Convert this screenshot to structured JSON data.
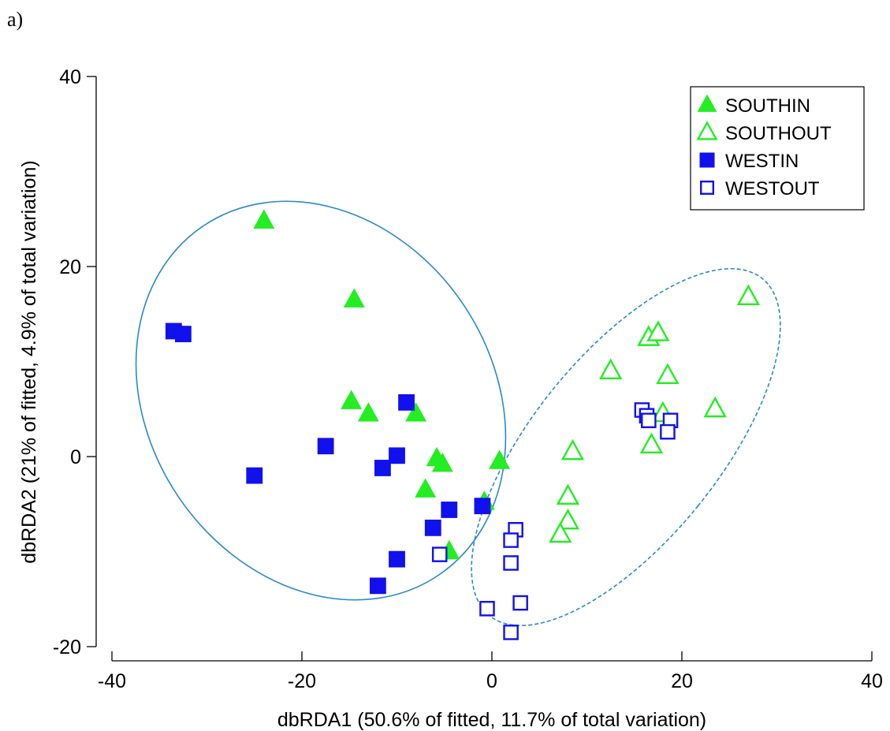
{
  "panel_label": "a)",
  "chart_data": {
    "type": "scatter",
    "title": "",
    "xlabel": "dbRDA1 (50.6% of fitted, 11.7% of total variation)",
    "ylabel": "dbRDA2 (21% of fitted, 4.9% of total variation)",
    "xlim": [
      -40,
      40
    ],
    "ylim": [
      -20,
      40
    ],
    "xticks": [
      "-40",
      "-20",
      "0",
      "20",
      "40"
    ],
    "yticks": [
      "-20",
      "0",
      "20",
      "40"
    ],
    "grid": false,
    "legend_position": "top-right",
    "colors": {
      "green": "#22ee22",
      "blue": "#1111ee",
      "ellipse": "#2b88d0"
    },
    "series": [
      {
        "name": "SOUTHIN",
        "marker": "triangle",
        "filled": true,
        "color": "#22ee22",
        "points": [
          [
            -24,
            24.8
          ],
          [
            -14.5,
            16.5
          ],
          [
            -14.8,
            5.8
          ],
          [
            -13,
            4.5
          ],
          [
            -8,
            4.5
          ],
          [
            -5.8,
            -0.2
          ],
          [
            -5.2,
            -0.8
          ],
          [
            0.8,
            -0.5
          ],
          [
            -7,
            -3.5
          ],
          [
            -0.8,
            -4.8
          ],
          [
            -4.5,
            -10
          ]
        ]
      },
      {
        "name": "SOUTHOUT",
        "marker": "triangle",
        "filled": false,
        "color": "#22ee22",
        "points": [
          [
            27,
            16.8
          ],
          [
            16.5,
            12.5
          ],
          [
            17.5,
            13
          ],
          [
            12.5,
            9
          ],
          [
            18.5,
            8.5
          ],
          [
            23.5,
            5
          ],
          [
            18,
            4.5
          ],
          [
            8.5,
            0.5
          ],
          [
            16.8,
            1.2
          ],
          [
            8,
            -4.2
          ],
          [
            8,
            -6.8
          ],
          [
            7.2,
            -8.2
          ]
        ]
      },
      {
        "name": "WESTIN",
        "marker": "square",
        "filled": true,
        "color": "#1111ee",
        "points": [
          [
            -33.5,
            13.2
          ],
          [
            -32.5,
            12.9
          ],
          [
            -9,
            5.7
          ],
          [
            -17.5,
            1.1
          ],
          [
            -10,
            0.1
          ],
          [
            -11.5,
            -1.2
          ],
          [
            -25,
            -2
          ],
          [
            -4.5,
            -5.6
          ],
          [
            -1,
            -5.2
          ],
          [
            -6.2,
            -7.5
          ],
          [
            -10,
            -10.8
          ],
          [
            -12,
            -13.6
          ]
        ]
      },
      {
        "name": "WESTOUT",
        "marker": "square",
        "filled": false,
        "color": "#1111ee",
        "points": [
          [
            15.8,
            4.9
          ],
          [
            16.3,
            4.3
          ],
          [
            16.5,
            3.8
          ],
          [
            18.8,
            3.8
          ],
          [
            18.5,
            2.6
          ],
          [
            2.5,
            -7.7
          ],
          [
            2,
            -8.8
          ],
          [
            -5.5,
            -10.3
          ],
          [
            2,
            -11.2
          ],
          [
            -0.5,
            -16
          ],
          [
            3,
            -15.4
          ],
          [
            2,
            -18.5
          ]
        ]
      }
    ]
  }
}
